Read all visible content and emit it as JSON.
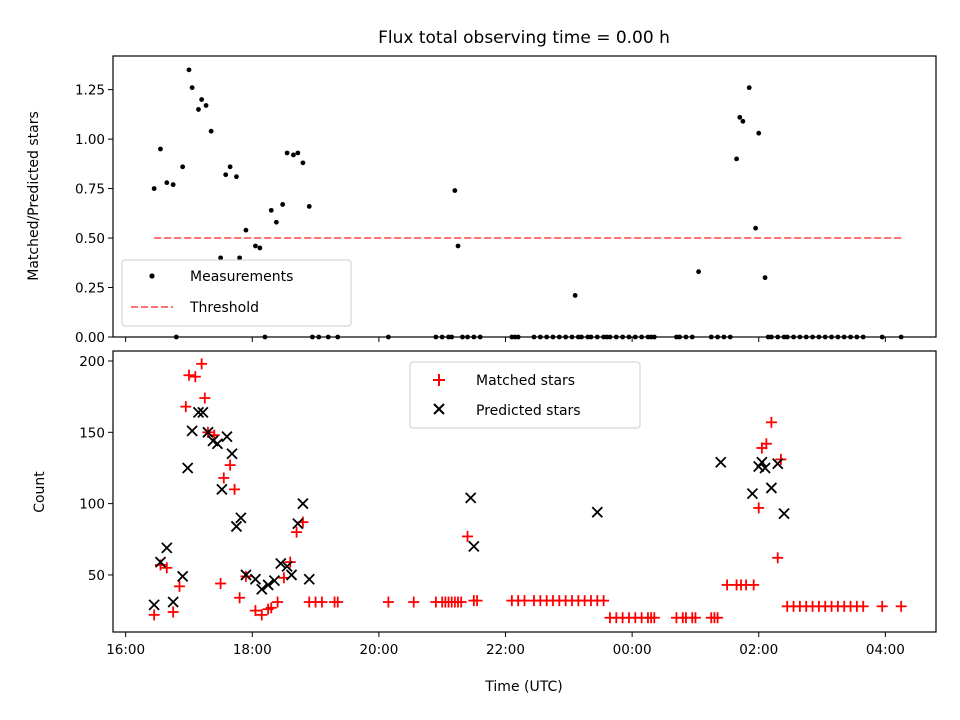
{
  "chart_data": [
    {
      "id": "ratio",
      "type": "scatter",
      "title": "Flux total observing time = 0.00 h",
      "xlabel": "",
      "ylabel": "Matched/Predicted stars",
      "xlim": [
        15.8,
        28.8
      ],
      "ylim": [
        0,
        1.42
      ],
      "xticks": [
        16,
        18,
        20,
        22,
        24,
        26,
        28
      ],
      "xticklabels": [
        "",
        "",
        "",
        "",
        "",
        "",
        ""
      ],
      "yticks": [
        0,
        0.25,
        0.5,
        0.75,
        1.0,
        1.25
      ],
      "yticklabels": [
        "0.00",
        "0.25",
        "0.50",
        "0.75",
        "1.00",
        "1.25"
      ],
      "legend": {
        "location": "lower-left",
        "entries": [
          {
            "label": "Measurements",
            "marker": "dot",
            "color": "#000000"
          },
          {
            "label": "Threshold",
            "marker": "dashed-line",
            "color": "#ff7070"
          }
        ]
      },
      "series": [
        {
          "name": "Measurements",
          "color": "#000000",
          "x": [
            16.45,
            16.55,
            16.65,
            16.75,
            16.8,
            16.9,
            17.0,
            17.05,
            17.15,
            17.2,
            17.27,
            17.35,
            17.5,
            17.58,
            17.65,
            17.75,
            17.8,
            17.9,
            18.05,
            18.12,
            18.2,
            18.3,
            18.38,
            18.48,
            18.55,
            18.65,
            18.72,
            18.8,
            18.9,
            18.95,
            19.05,
            19.2,
            19.35,
            20.15,
            20.9,
            21.0,
            21.1,
            21.15,
            21.2,
            21.25,
            21.32,
            21.4,
            21.5,
            21.6,
            22.1,
            22.15,
            22.2,
            22.45,
            22.55,
            22.65,
            22.75,
            22.85,
            22.95,
            23.05,
            23.1,
            23.15,
            23.2,
            23.3,
            23.35,
            23.45,
            23.55,
            23.6,
            23.65,
            23.75,
            23.85,
            23.95,
            24.05,
            24.15,
            24.25,
            24.3,
            24.35,
            24.7,
            24.75,
            24.85,
            24.95,
            25.05,
            25.25,
            25.35,
            25.45,
            25.55,
            25.65,
            25.7,
            25.75,
            25.85,
            25.95,
            26.0,
            26.1,
            26.15,
            26.2,
            26.3,
            26.4,
            26.45,
            26.55,
            26.65,
            26.75,
            26.85,
            26.95,
            27.05,
            27.15,
            27.25,
            27.35,
            27.45,
            27.55,
            27.65,
            27.95,
            28.25
          ],
          "y": [
            0.75,
            0.95,
            0.78,
            0.77,
            0,
            0.86,
            1.35,
            1.26,
            1.15,
            1.2,
            1.17,
            1.04,
            0.4,
            0.82,
            0.86,
            0.81,
            0.4,
            0.54,
            0.46,
            0.45,
            0,
            0.64,
            0.58,
            0.67,
            0.93,
            0.92,
            0.93,
            0.88,
            0.66,
            0,
            0,
            0,
            0,
            0,
            0,
            0,
            0,
            0,
            0.74,
            0.46,
            0,
            0,
            0,
            0,
            0,
            0,
            0,
            0,
            0,
            0,
            0,
            0,
            0,
            0,
            0.21,
            0,
            0,
            0,
            0,
            0,
            0,
            0,
            0,
            0,
            0,
            0,
            0,
            0,
            0,
            0,
            0,
            0,
            0,
            0,
            0,
            0.33,
            0,
            0,
            0,
            0,
            0.9,
            1.11,
            1.09,
            1.26,
            0.55,
            1.03,
            0.3,
            0,
            0,
            0,
            0,
            0,
            0,
            0,
            0,
            0,
            0,
            0,
            0,
            0,
            0,
            0,
            0,
            0,
            0,
            0
          ]
        },
        {
          "name": "Threshold",
          "color": "#ff7070",
          "style": "dashed",
          "x": [
            16.45,
            28.25
          ],
          "y": [
            0.5,
            0.5
          ]
        }
      ]
    },
    {
      "id": "counts",
      "type": "scatter",
      "title": "",
      "xlabel": "Time (UTC)",
      "ylabel": "Count",
      "xlim": [
        15.8,
        28.8
      ],
      "ylim": [
        10,
        207
      ],
      "xticks": [
        16,
        18,
        20,
        22,
        24,
        26,
        28
      ],
      "xticklabels": [
        "16:00",
        "18:00",
        "20:00",
        "22:00",
        "00:00",
        "02:00",
        "04:00"
      ],
      "yticks": [
        50,
        100,
        150,
        200
      ],
      "yticklabels": [
        "50",
        "100",
        "150",
        "200"
      ],
      "legend": {
        "location": "upper-center",
        "entries": [
          {
            "label": "Matched stars",
            "marker": "plus",
            "color": "#ff0000"
          },
          {
            "label": "Predicted stars",
            "marker": "x",
            "color": "#000000"
          }
        ]
      },
      "series": [
        {
          "name": "Matched stars",
          "marker": "plus",
          "color": "#ff0000",
          "x": [
            16.45,
            16.55,
            16.65,
            16.75,
            16.85,
            16.95,
            17.0,
            17.1,
            17.2,
            17.25,
            17.3,
            17.4,
            17.5,
            17.55,
            17.65,
            17.72,
            17.8,
            17.9,
            18.05,
            18.15,
            18.25,
            18.3,
            18.4,
            18.5,
            18.6,
            18.7,
            18.8,
            18.9,
            19.0,
            19.1,
            19.3,
            19.35,
            20.15,
            20.55,
            20.9,
            21.0,
            21.05,
            21.1,
            21.15,
            21.2,
            21.25,
            21.3,
            21.4,
            21.5,
            21.55,
            22.1,
            22.2,
            22.3,
            22.45,
            22.55,
            22.65,
            22.75,
            22.85,
            22.95,
            23.05,
            23.15,
            23.25,
            23.35,
            23.45,
            23.55,
            23.65,
            23.75,
            23.85,
            23.95,
            24.05,
            24.15,
            24.25,
            24.3,
            24.35,
            24.7,
            24.8,
            24.85,
            24.95,
            25.0,
            25.25,
            25.3,
            25.35,
            25.5,
            25.65,
            25.72,
            25.8,
            25.92,
            26.0,
            26.05,
            26.12,
            26.2,
            26.3,
            26.35,
            26.45,
            26.55,
            26.65,
            26.75,
            26.85,
            26.95,
            27.05,
            27.15,
            27.25,
            27.35,
            27.45,
            27.55,
            27.65,
            27.95,
            28.25
          ],
          "y": [
            22,
            57,
            55,
            24,
            42,
            168,
            190,
            189,
            198,
            174,
            150,
            148,
            44,
            118,
            127,
            110,
            34,
            49,
            25,
            22,
            26,
            27,
            31,
            48,
            59,
            80,
            87,
            31,
            31,
            31,
            31,
            31,
            31,
            31,
            31,
            31,
            31,
            31,
            31,
            31,
            31,
            31,
            77,
            32,
            32,
            32,
            32,
            32,
            32,
            32,
            32,
            32,
            32,
            32,
            32,
            32,
            32,
            32,
            32,
            32,
            20,
            20,
            20,
            20,
            20,
            20,
            20,
            20,
            20,
            20,
            20,
            20,
            20,
            20,
            20,
            20,
            20,
            43,
            43,
            43,
            43,
            43,
            97,
            139,
            142,
            157,
            62,
            131,
            28,
            28,
            28,
            28,
            28,
            28,
            28,
            28,
            28,
            28,
            28,
            28,
            28,
            28,
            28
          ]
        },
        {
          "name": "Predicted stars",
          "marker": "x",
          "color": "#000000",
          "x": [
            16.45,
            16.55,
            16.65,
            16.75,
            16.9,
            16.98,
            17.05,
            17.15,
            17.22,
            17.3,
            17.38,
            17.45,
            17.52,
            17.6,
            17.68,
            17.75,
            17.82,
            17.9,
            18.05,
            18.15,
            18.25,
            18.35,
            18.45,
            18.55,
            18.62,
            18.72,
            18.8,
            18.9,
            21.45,
            21.5,
            23.45,
            25.4,
            25.9,
            26.0,
            26.05,
            26.1,
            26.2,
            26.3,
            26.4
          ],
          "y": [
            29,
            59,
            69,
            31,
            49,
            125,
            151,
            164,
            164,
            150,
            144,
            142,
            110,
            147,
            135,
            84,
            90,
            50,
            47,
            40,
            43,
            46,
            58,
            56,
            50,
            86,
            100,
            47,
            104,
            70,
            94,
            129,
            107,
            126,
            129,
            125,
            111,
            128,
            93
          ]
        }
      ]
    }
  ]
}
